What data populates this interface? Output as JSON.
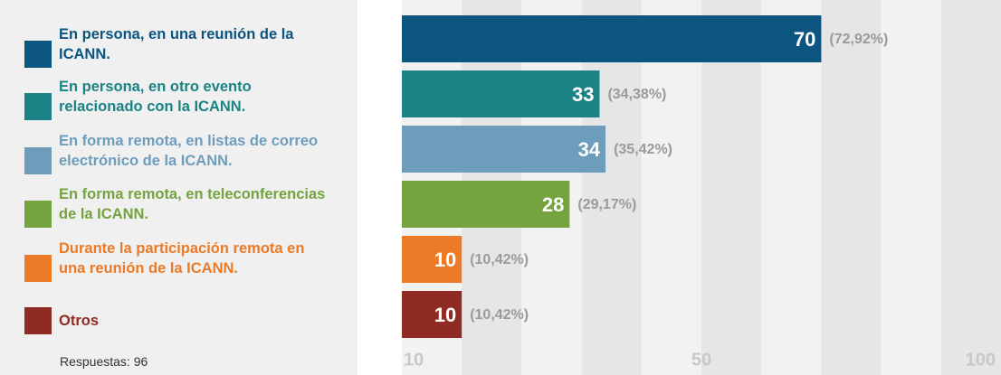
{
  "chart_data": {
    "type": "bar",
    "orientation": "horizontal",
    "categories": [
      "En persona, en una reunión de la ICANN.",
      "En persona, en otro evento relacionado con la ICANN.",
      "En forma remota, en listas de correo electrónico de la ICANN.",
      "En forma remota, en teleconferencias de la ICANN.",
      "Durante la participación remota en una reunión de la ICANN.",
      "Otros"
    ],
    "values": [
      70,
      33,
      34,
      28,
      10,
      10
    ],
    "percent_labels": [
      "(72,92%)",
      "(34,38%)",
      "(35,42%)",
      "(29,17%)",
      "(10,42%)",
      "(10,42%)"
    ],
    "colors": [
      "#0b5580",
      "#1b8385",
      "#6e9dbb",
      "#74a33f",
      "#ec7a26",
      "#8f2b22"
    ],
    "xlim": [
      0,
      100
    ],
    "xticks": [
      10,
      50,
      100
    ],
    "note": "Respuestas: 96"
  }
}
